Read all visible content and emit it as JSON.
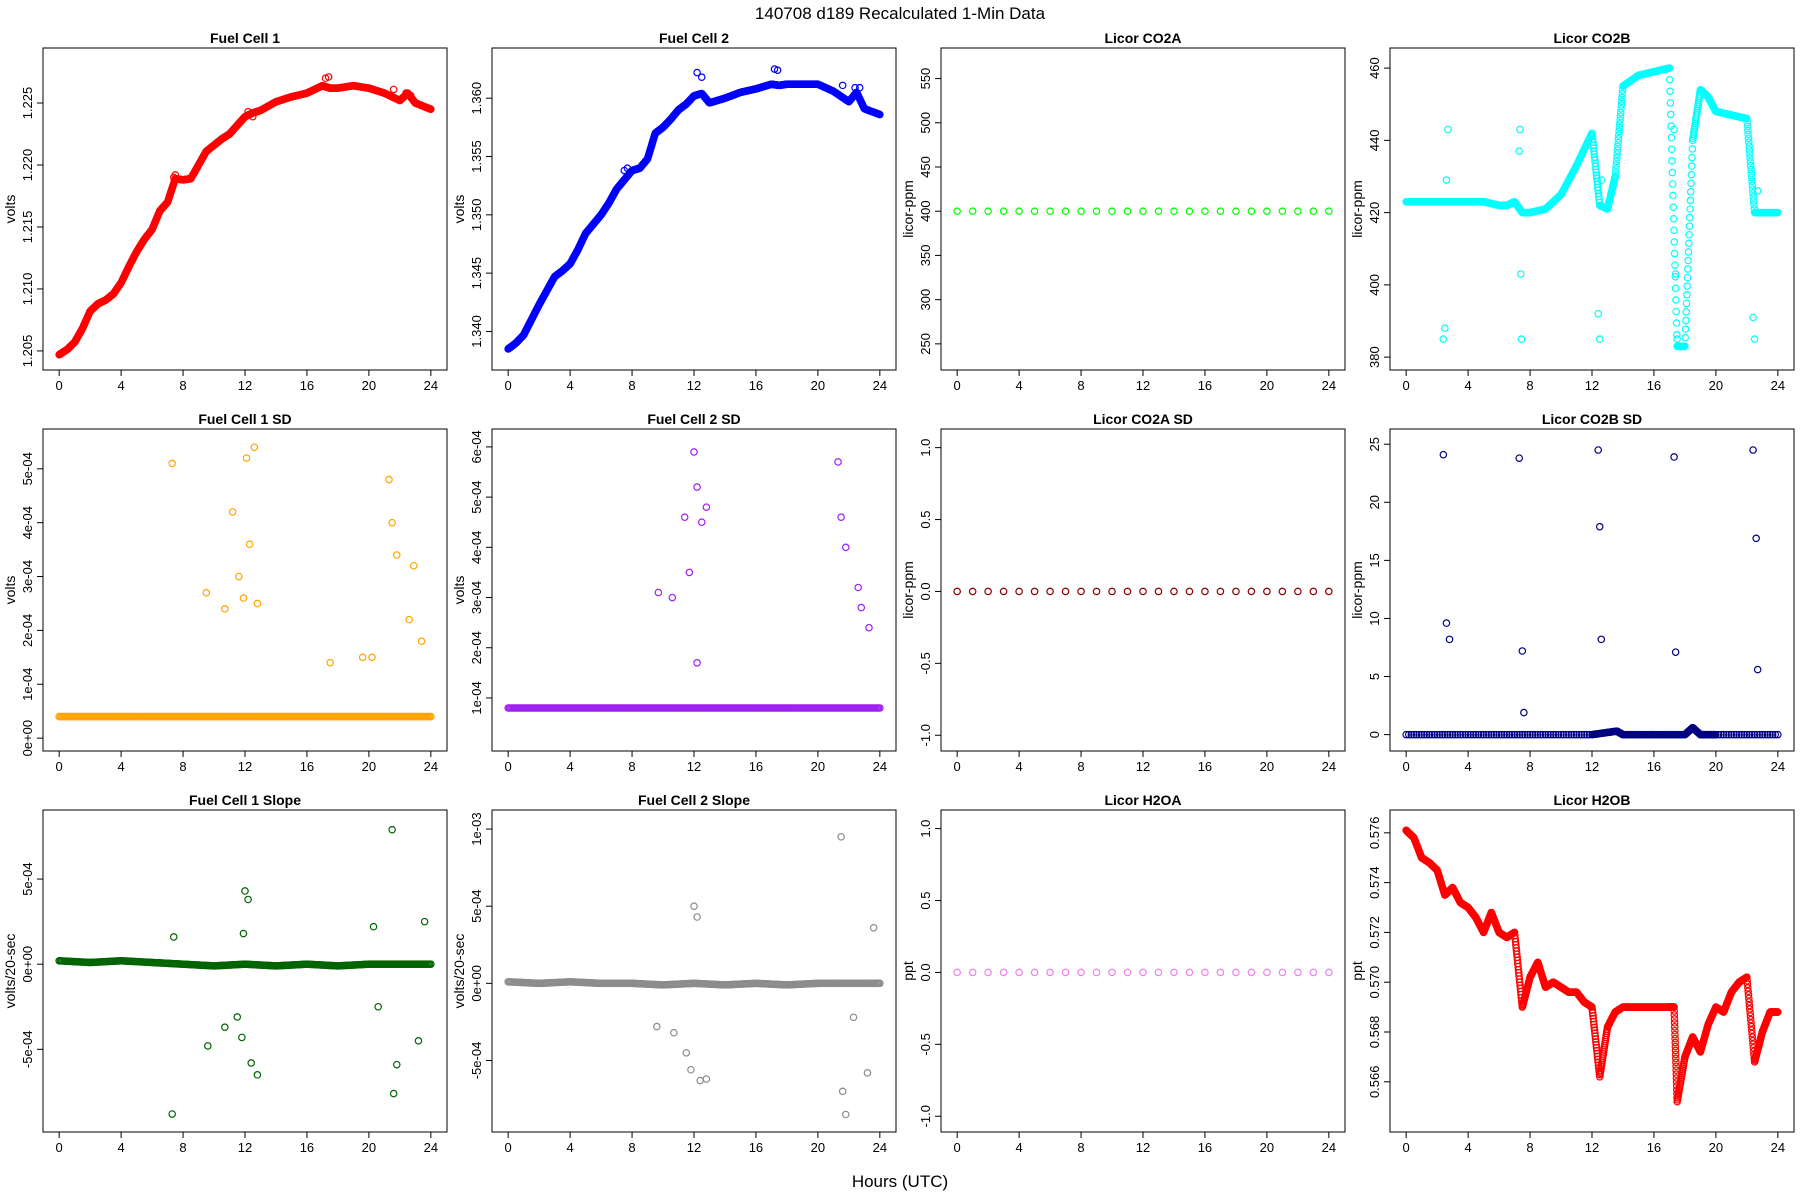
{
  "figure": {
    "title": "140708   d189   Recalculated 1-Min Data",
    "xlabel": "Hours (UTC)"
  },
  "chart_data": [
    {
      "type": "scatter",
      "title": "Fuel Cell 1",
      "ylabel": "volts",
      "color": "#ff0000",
      "xlim": [
        0,
        24
      ],
      "ylim": [
        1.2045,
        1.2284
      ],
      "xticks": [
        "0",
        "4",
        "8",
        "12",
        "16",
        "20",
        "24"
      ],
      "yticks": [
        "1.205",
        "1.210",
        "1.215",
        "1.220",
        "1.225"
      ],
      "x": [
        0,
        0.5,
        1,
        1.5,
        2,
        2.5,
        3,
        3.5,
        4,
        4.5,
        5,
        5.5,
        6,
        6.5,
        7,
        7.5,
        8,
        8.5,
        9,
        9.5,
        10,
        10.5,
        11,
        11.5,
        12,
        12.5,
        13,
        14,
        15,
        16,
        17,
        17.5,
        18,
        19,
        20,
        21,
        22,
        22.5,
        23,
        24
      ],
      "y": [
        1.2047,
        1.2051,
        1.2057,
        1.2068,
        1.2082,
        1.2088,
        1.2091,
        1.2096,
        1.2105,
        1.2118,
        1.213,
        1.214,
        1.2148,
        1.2163,
        1.217,
        1.2189,
        1.2188,
        1.2189,
        1.22,
        1.2211,
        1.2216,
        1.2221,
        1.2225,
        1.2232,
        1.2239,
        1.2242,
        1.2244,
        1.2251,
        1.2255,
        1.2258,
        1.2264,
        1.2262,
        1.2262,
        1.2264,
        1.2262,
        1.2258,
        1.2252,
        1.2258,
        1.225,
        1.2245
      ],
      "outliers": {
        "x": [
          7.4,
          7.5,
          12.2,
          12.5,
          17.2,
          17.4,
          21.6,
          22.4,
          22.7
        ],
        "y": [
          1.219,
          1.2192,
          1.2243,
          1.2239,
          1.227,
          1.2271,
          1.2261,
          1.2258,
          1.2256
        ]
      }
    },
    {
      "type": "scatter",
      "title": "Fuel Cell 2",
      "ylabel": "volts",
      "color": "#0000ff",
      "xlim": [
        0,
        24
      ],
      "ylim": [
        1.3378,
        1.3632
      ],
      "xticks": [
        "0",
        "4",
        "8",
        "12",
        "16",
        "20",
        "24"
      ],
      "yticks": [
        "1.340",
        "1.345",
        "1.350",
        "1.355",
        "1.360"
      ],
      "x": [
        0,
        0.5,
        1,
        1.5,
        2,
        2.5,
        3,
        3.5,
        4,
        4.5,
        5,
        5.5,
        6,
        6.5,
        7,
        7.5,
        8,
        8.5,
        9,
        9.5,
        10,
        10.5,
        11,
        11.5,
        12,
        12.5,
        13,
        14,
        15,
        16,
        17,
        17.5,
        18,
        19,
        20,
        21,
        22,
        22.5,
        23,
        24
      ],
      "y": [
        1.3385,
        1.339,
        1.3397,
        1.341,
        1.3423,
        1.3435,
        1.3447,
        1.3452,
        1.3458,
        1.347,
        1.3484,
        1.3492,
        1.35,
        1.351,
        1.3522,
        1.353,
        1.3538,
        1.354,
        1.3548,
        1.357,
        1.3575,
        1.3582,
        1.359,
        1.3595,
        1.3602,
        1.3604,
        1.3596,
        1.36,
        1.3605,
        1.3608,
        1.3612,
        1.3611,
        1.3612,
        1.3612,
        1.3612,
        1.3606,
        1.3597,
        1.3605,
        1.3591,
        1.3586
      ],
      "outliers": {
        "x": [
          7.5,
          7.7,
          12.2,
          12.5,
          17.2,
          17.4,
          21.6,
          22.4,
          22.7
        ],
        "y": [
          1.3538,
          1.354,
          1.3622,
          1.3618,
          1.3625,
          1.3624,
          1.3611,
          1.3609,
          1.3609
        ]
      }
    },
    {
      "type": "scatter",
      "title": "Licor CO2A",
      "ylabel": "licor-ppm",
      "color": "#00ff00",
      "xlim": [
        0,
        24
      ],
      "ylim": [
        235,
        570
      ],
      "xticks": [
        "0",
        "4",
        "8",
        "12",
        "16",
        "20",
        "24"
      ],
      "yticks": [
        "250",
        "300",
        "350",
        "400",
        "450",
        "500",
        "550"
      ],
      "x": [
        0,
        24
      ],
      "y": [
        400,
        400
      ]
    },
    {
      "type": "scatter",
      "title": "Licor CO2B",
      "ylabel": "licor-ppm",
      "color": "#00ffff",
      "xlim": [
        0,
        24
      ],
      "ylim": [
        380,
        462
      ],
      "xticks": [
        "0",
        "4",
        "8",
        "12",
        "16",
        "20",
        "24"
      ],
      "yticks": [
        "380",
        "400",
        "420",
        "440",
        "460"
      ],
      "x": [
        0,
        1,
        2,
        3,
        4,
        5,
        6,
        6.5,
        7,
        7.5,
        8,
        9,
        10,
        11,
        12,
        12.5,
        13,
        13.5,
        14,
        15,
        16,
        17,
        17.5,
        18,
        18.5,
        19,
        19.5,
        20,
        21,
        22,
        22.5,
        23,
        24
      ],
      "y": [
        423,
        423,
        423,
        423,
        423,
        423,
        422,
        422,
        423,
        420,
        420,
        421,
        425,
        433,
        442,
        422,
        421,
        430,
        455,
        458,
        459,
        460,
        383,
        383,
        440,
        454,
        452,
        448,
        447,
        446,
        420,
        420,
        420
      ],
      "outliers": {
        "x": [
          2.4,
          2.5,
          2.6,
          2.7,
          7.3,
          7.35,
          7.4,
          7.45,
          12.4,
          12.5,
          12.6,
          17.3,
          17.4,
          17.5,
          22.4,
          22.5,
          22.7
        ],
        "y": [
          385,
          388,
          429,
          443,
          437,
          443,
          403,
          385,
          392,
          385,
          429,
          443,
          403,
          385,
          391,
          385,
          426
        ]
      }
    },
    {
      "type": "scatter",
      "title": "Fuel Cell 1 SD",
      "ylabel": "volts",
      "color": "#ffa500",
      "xlim": [
        0,
        24
      ],
      "ylim": [
        0,
        0.00055
      ],
      "xticks": [
        "0",
        "4",
        "8",
        "12",
        "16",
        "20",
        "24"
      ],
      "yticks": [
        "0e+00",
        "1e-04",
        "2e-04",
        "3e-04",
        "4e-04",
        "5e-04"
      ],
      "x": [
        0,
        2,
        4,
        6,
        8,
        10,
        12,
        14,
        16,
        18,
        20,
        22,
        24
      ],
      "y": [
        4e-05,
        4e-05,
        4e-05,
        4e-05,
        4e-05,
        4e-05,
        4e-05,
        4e-05,
        4e-05,
        4e-05,
        4e-05,
        4e-05,
        4e-05
      ],
      "outliers": {
        "x": [
          7.3,
          9.5,
          10.7,
          11.2,
          11.6,
          11.9,
          12.1,
          12.3,
          12.6,
          12.8,
          17.5,
          19.6,
          20.2,
          21.3,
          21.5,
          21.8,
          22.6,
          22.9,
          23.4
        ],
        "y": [
          0.00051,
          0.00027,
          0.00024,
          0.00042,
          0.0003,
          0.00026,
          0.00052,
          0.00036,
          0.00054,
          0.00025,
          0.00014,
          0.00015,
          0.00015,
          0.00048,
          0.0004,
          0.00034,
          0.00022,
          0.00032,
          0.00018
        ]
      }
    },
    {
      "type": "scatter",
      "title": "Fuel Cell 2 SD",
      "ylabel": "volts",
      "color": "#a020f0",
      "xlim": [
        0,
        24
      ],
      "ylim": [
        2e-05,
        0.00061
      ],
      "xticks": [
        "0",
        "4",
        "8",
        "12",
        "16",
        "20",
        "24"
      ],
      "yticks": [
        "1e-04",
        "2e-04",
        "3e-04",
        "4e-04",
        "5e-04",
        "6e-04"
      ],
      "x": [
        0,
        2,
        4,
        6,
        8,
        10,
        12,
        14,
        16,
        18,
        20,
        22,
        24
      ],
      "y": [
        8e-05,
        8e-05,
        8e-05,
        8e-05,
        8e-05,
        8e-05,
        8e-05,
        8e-05,
        8e-05,
        8e-05,
        8e-05,
        8e-05,
        8e-05
      ],
      "outliers": {
        "x": [
          9.7,
          10.6,
          11.4,
          11.7,
          12.0,
          12.2,
          12.5,
          12.8,
          12.2,
          21.3,
          21.5,
          21.8,
          22.6,
          22.8,
          23.3
        ],
        "y": [
          0.00031,
          0.0003,
          0.00046,
          0.00035,
          0.00059,
          0.00052,
          0.00045,
          0.00048,
          0.00017,
          0.00057,
          0.00046,
          0.0004,
          0.00032,
          0.00028,
          0.00024
        ]
      }
    },
    {
      "type": "scatter",
      "title": "Licor CO2A SD",
      "ylabel": "licor-ppm",
      "color": "#8b0000",
      "xlim": [
        0,
        24
      ],
      "ylim": [
        -1.02,
        1.04
      ],
      "xticks": [
        "0",
        "4",
        "8",
        "12",
        "16",
        "20",
        "24"
      ],
      "yticks": [
        "-1.0",
        "-0.5",
        "0.0",
        "0.5",
        "1.0"
      ],
      "x": [
        0,
        24
      ],
      "y": [
        0,
        0
      ]
    },
    {
      "type": "scatter",
      "title": "Licor CO2B SD",
      "ylabel": "licor-ppm",
      "color": "#000080",
      "xlim": [
        0,
        24
      ],
      "ylim": [
        -0.3,
        25.2
      ],
      "xticks": [
        "0",
        "4",
        "8",
        "12",
        "16",
        "20",
        "24"
      ],
      "yticks": [
        "0",
        "5",
        "10",
        "15",
        "20",
        "25"
      ],
      "x": [
        0,
        4,
        8,
        12,
        13.6,
        14,
        16,
        18,
        18.5,
        19,
        20,
        24
      ],
      "y": [
        0,
        0,
        0,
        0,
        0.3,
        0,
        0,
        0,
        0.6,
        0,
        0,
        0
      ],
      "outliers": {
        "x": [
          2.4,
          2.6,
          2.8,
          7.3,
          7.5,
          7.6,
          12.4,
          12.5,
          12.6,
          17.3,
          17.4,
          22.4,
          22.6,
          22.7
        ],
        "y": [
          24.1,
          9.6,
          8.2,
          23.8,
          7.2,
          1.9,
          24.5,
          17.9,
          8.2,
          23.9,
          7.1,
          24.5,
          16.9,
          5.6
        ]
      }
    },
    {
      "type": "scatter",
      "title": "Fuel Cell 1 Slope",
      "ylabel": "volts/20-sec",
      "color": "#006400",
      "xlim": [
        0,
        24
      ],
      "ylim": [
        -0.00091,
        0.00083
      ],
      "xticks": [
        "0",
        "4",
        "8",
        "12",
        "16",
        "20",
        "24"
      ],
      "yticks": [
        "-5e-04",
        "0e+00",
        "5e-04"
      ],
      "x": [
        0,
        2,
        4,
        6,
        8,
        10,
        12,
        14,
        16,
        18,
        20,
        22,
        24
      ],
      "y": [
        2e-05,
        1e-05,
        2e-05,
        1e-05,
        0,
        -1e-05,
        0,
        -1e-05,
        0,
        -1e-05,
        0,
        0,
        0
      ],
      "outliers": {
        "x": [
          7.3,
          7.4,
          9.6,
          10.7,
          11.5,
          11.8,
          12.0,
          12.2,
          12.4,
          12.8,
          11.9,
          21.5,
          21.6,
          21.8,
          23.2,
          23.6,
          20.3,
          20.6
        ],
        "y": [
          -0.00088,
          0.00016,
          -0.00048,
          -0.00037,
          -0.00031,
          -0.00043,
          0.00043,
          0.00038,
          -0.00058,
          -0.00065,
          0.00018,
          0.00079,
          -0.00076,
          -0.00059,
          -0.00045,
          0.00025,
          0.00022,
          -0.00025
        ]
      }
    },
    {
      "type": "scatter",
      "title": "Fuel Cell 2 Slope",
      "ylabel": "volts/20-sec",
      "color": "#8c8c8c",
      "xlim": [
        0,
        24
      ],
      "ylim": [
        -0.00088,
        0.00104
      ],
      "xticks": [
        "0",
        "4",
        "8",
        "12",
        "16",
        "20",
        "24"
      ],
      "yticks": [
        "-5e-04",
        "0e+00",
        "5e-04",
        "1e-03"
      ],
      "x": [
        0,
        2,
        4,
        6,
        8,
        10,
        12,
        14,
        16,
        18,
        20,
        22,
        24
      ],
      "y": [
        1e-05,
        0,
        1e-05,
        0,
        0,
        -1e-05,
        0,
        -1e-05,
        0,
        -1e-05,
        0,
        0,
        0
      ],
      "outliers": {
        "x": [
          9.6,
          10.7,
          11.5,
          11.8,
          12.0,
          12.2,
          12.4,
          12.8,
          21.5,
          21.6,
          21.8,
          22.3,
          23.2,
          23.6
        ],
        "y": [
          -0.00028,
          -0.00032,
          -0.00045,
          -0.00056,
          0.0005,
          0.00043,
          -0.00063,
          -0.00062,
          0.00095,
          -0.0007,
          -0.00085,
          -0.00022,
          -0.00058,
          0.00036
        ]
      }
    },
    {
      "type": "scatter",
      "title": "Licor H2OA",
      "ylabel": "ppt",
      "color": "#ee82ee",
      "xlim": [
        0,
        24
      ],
      "ylim": [
        -1.02,
        1.04
      ],
      "xticks": [
        "0",
        "4",
        "8",
        "12",
        "16",
        "20",
        "24"
      ],
      "yticks": [
        "-1.0",
        "-0.5",
        "0.0",
        "0.5",
        "1.0"
      ],
      "x": [
        0,
        24
      ],
      "y": [
        0,
        0
      ]
    },
    {
      "type": "scatter",
      "title": "Licor H2OB",
      "ylabel": "ppt",
      "color": "#ff0000",
      "xlim": [
        0,
        24
      ],
      "ylim": [
        0.5645,
        0.5764
      ],
      "xticks": [
        "0",
        "4",
        "8",
        "12",
        "16",
        "20",
        "24"
      ],
      "yticks": [
        "0.566",
        "0.568",
        "0.570",
        "0.572",
        "0.574",
        "0.576"
      ],
      "x": [
        0,
        0.5,
        1,
        1.5,
        2,
        2.5,
        3,
        3.5,
        4,
        4.5,
        5,
        5.5,
        6,
        6.5,
        7,
        7.5,
        8,
        8.5,
        9,
        9.5,
        10,
        10.5,
        11,
        11.5,
        12,
        12.5,
        13,
        13.5,
        14,
        15,
        16,
        17,
        17.3,
        17.5,
        18,
        18.5,
        19,
        19.5,
        20,
        20.5,
        21,
        21.5,
        22,
        22.5,
        23,
        23.5,
        24
      ],
      "y": [
        0.5761,
        0.5758,
        0.575,
        0.5748,
        0.5745,
        0.5735,
        0.5738,
        0.5732,
        0.573,
        0.5726,
        0.572,
        0.5728,
        0.572,
        0.5718,
        0.572,
        0.569,
        0.5702,
        0.5708,
        0.5698,
        0.57,
        0.5698,
        0.5696,
        0.5696,
        0.5692,
        0.569,
        0.5662,
        0.5682,
        0.5688,
        0.569,
        0.569,
        0.569,
        0.569,
        0.569,
        0.5652,
        0.567,
        0.5678,
        0.5672,
        0.5683,
        0.569,
        0.5688,
        0.5696,
        0.57,
        0.5702,
        0.5668,
        0.568,
        0.5688,
        0.5688
      ]
    }
  ]
}
